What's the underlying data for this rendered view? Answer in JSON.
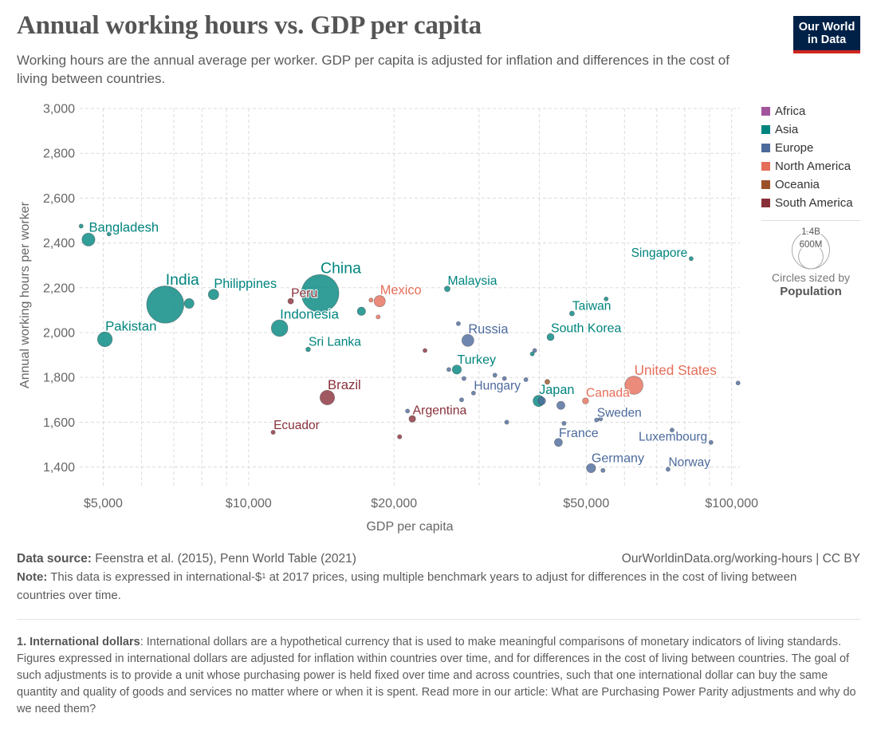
{
  "header": {
    "title": "Annual working hours vs. GDP per capita",
    "subtitle": "Working hours are the annual average per worker. GDP per capita is adjusted for inflation and differences in the cost of living between countries.",
    "logo": {
      "line1": "Our World",
      "line2": "in Data"
    }
  },
  "chart_data": {
    "type": "scatter",
    "title": "Annual working hours vs. GDP per capita",
    "xlabel": "GDP per capita",
    "ylabel": "Annual working hours per worker",
    "x_scale": "log",
    "xlim": [
      4470,
      104000
    ],
    "ylim": [
      1313,
      3000
    ],
    "x_ticks": [
      5000,
      10000,
      20000,
      50000,
      100000
    ],
    "x_tick_labels": [
      "$5,000",
      "$10,000",
      "$20,000",
      "$50,000",
      "$100,000"
    ],
    "x_minor_gridlines": [
      6000,
      7000,
      8000,
      9000,
      30000,
      40000,
      60000,
      70000,
      80000,
      90000
    ],
    "y_ticks": [
      1400,
      1600,
      1800,
      2000,
      2200,
      2400,
      2600,
      2800,
      3000
    ],
    "y_tick_labels": [
      "1,400",
      "1,600",
      "1,800",
      "2,000",
      "2,200",
      "2,400",
      "2,600",
      "2,800",
      "3,000"
    ],
    "grid": true,
    "legend_position": "right",
    "regions": [
      {
        "name": "Africa",
        "color": "#a2559c"
      },
      {
        "name": "Asia",
        "color": "#00847e"
      },
      {
        "name": "Europe",
        "color": "#4c6a9c"
      },
      {
        "name": "North America",
        "color": "#e56e5a"
      },
      {
        "name": "Oceania",
        "color": "#9a5129"
      },
      {
        "name": "South America",
        "color": "#883039"
      }
    ],
    "size_variable": "Population",
    "size_legend": [
      {
        "value_millions": 1400,
        "label": "1.4B"
      },
      {
        "value_millions": 600,
        "label": "600M"
      }
    ],
    "points": [
      {
        "label": "Bangladesh",
        "region": "Asia",
        "gdp_per_capita": 4660,
        "hours": 2415,
        "population_millions": 169
      },
      {
        "label": null,
        "region": "Asia",
        "gdp_per_capita": 4500,
        "hours": 2475,
        "population_millions": 16
      },
      {
        "label": null,
        "region": "Asia",
        "gdp_per_capita": 5140,
        "hours": 2440,
        "population_millions": 7
      },
      {
        "label": "India",
        "region": "Asia",
        "gdp_per_capita": 6720,
        "hours": 2125,
        "population_millions": 1380
      },
      {
        "label": null,
        "region": "Asia",
        "gdp_per_capita": 7530,
        "hours": 2130,
        "population_millions": 97
      },
      {
        "label": "Philippines",
        "region": "Asia",
        "gdp_per_capita": 8460,
        "hours": 2170,
        "population_millions": 110
      },
      {
        "label": "Pakistan",
        "region": "Asia",
        "gdp_per_capita": 5040,
        "hours": 1970,
        "population_millions": 220
      },
      {
        "label": "Indonesia",
        "region": "Asia",
        "gdp_per_capita": 11590,
        "hours": 2020,
        "population_millions": 274
      },
      {
        "label": "China",
        "region": "Asia",
        "gdp_per_capita": 14060,
        "hours": 2175,
        "population_millions": 1410
      },
      {
        "label": "Sri Lanka",
        "region": "Asia",
        "gdp_per_capita": 13280,
        "hours": 1925,
        "population_millions": 22
      },
      {
        "label": null,
        "region": "Asia",
        "gdp_per_capita": 17120,
        "hours": 2095,
        "population_millions": 70
      },
      {
        "label": "Malaysia",
        "region": "Asia",
        "gdp_per_capita": 25780,
        "hours": 2195,
        "population_millions": 32
      },
      {
        "label": "Turkey",
        "region": "Asia",
        "gdp_per_capita": 26980,
        "hours": 1835,
        "population_millions": 84
      },
      {
        "label": null,
        "region": "Asia",
        "gdp_per_capita": 38660,
        "hours": 1905,
        "population_millions": 9
      },
      {
        "label": "South Korea",
        "region": "Asia",
        "gdp_per_capita": 42170,
        "hours": 1980,
        "population_millions": 51
      },
      {
        "label": "Taiwan",
        "region": "Asia",
        "gdp_per_capita": 46710,
        "hours": 2085,
        "population_millions": 24
      },
      {
        "label": null,
        "region": "Asia",
        "gdp_per_capita": 54970,
        "hours": 2150,
        "population_millions": 7.5
      },
      {
        "label": "Singapore",
        "region": "Asia",
        "gdp_per_capita": 82440,
        "hours": 2330,
        "population_millions": 6
      },
      {
        "label": "Japan",
        "region": "Asia",
        "gdp_per_capita": 39850,
        "hours": 1695,
        "population_millions": 126
      },
      {
        "label": null,
        "region": "Europe",
        "gdp_per_capita": 27180,
        "hours": 2040,
        "population_millions": 7
      },
      {
        "label": "Russia",
        "region": "Europe",
        "gdp_per_capita": 28440,
        "hours": 1965,
        "population_millions": 144
      },
      {
        "label": null,
        "region": "Europe",
        "gdp_per_capita": 25970,
        "hours": 1835,
        "population_millions": 7
      },
      {
        "label": null,
        "region": "Europe",
        "gdp_per_capita": 27910,
        "hours": 1795,
        "population_millions": 10
      },
      {
        "label": null,
        "region": "Europe",
        "gdp_per_capita": 32350,
        "hours": 1810,
        "population_millions": 10
      },
      {
        "label": null,
        "region": "Europe",
        "gdp_per_capita": 33850,
        "hours": 1795,
        "population_millions": 5
      },
      {
        "label": null,
        "region": "Europe",
        "gdp_per_capita": 37500,
        "hours": 1790,
        "population_millions": 10
      },
      {
        "label": "Hungary",
        "region": "Europe",
        "gdp_per_capita": 29210,
        "hours": 1730,
        "population_millions": 10
      },
      {
        "label": null,
        "region": "Europe",
        "gdp_per_capita": 27600,
        "hours": 1700,
        "population_millions": 6
      },
      {
        "label": null,
        "region": "Europe",
        "gdp_per_capita": 21330,
        "hours": 1650,
        "population_millions": 7
      },
      {
        "label": null,
        "region": "Europe",
        "gdp_per_capita": 34230,
        "hours": 1600,
        "population_millions": 10
      },
      {
        "label": null,
        "region": "Europe",
        "gdp_per_capita": 40460,
        "hours": 1695,
        "population_millions": 60
      },
      {
        "label": null,
        "region": "Europe",
        "gdp_per_capita": 44300,
        "hours": 1675,
        "population_millions": 67
      },
      {
        "label": null,
        "region": "Europe",
        "gdp_per_capita": 39100,
        "hours": 1920,
        "population_millions": 10
      },
      {
        "label": "Sweden",
        "region": "Europe",
        "gdp_per_capita": 52520,
        "hours": 1610,
        "population_millions": 10
      },
      {
        "label": null,
        "region": "Europe",
        "gdp_per_capita": 53530,
        "hours": 1615,
        "population_millions": 6
      },
      {
        "label": null,
        "region": "Europe",
        "gdp_per_capita": 44970,
        "hours": 1595,
        "population_millions": 17
      },
      {
        "label": "France",
        "region": "Europe",
        "gdp_per_capita": 43790,
        "hours": 1510,
        "population_millions": 65
      },
      {
        "label": null,
        "region": "Europe",
        "gdp_per_capita": 75270,
        "hours": 1565,
        "population_millions": 5
      },
      {
        "label": "Luxembourg",
        "region": "Europe",
        "gdp_per_capita": 90630,
        "hours": 1510,
        "population_millions": 0.6
      },
      {
        "label": "Germany",
        "region": "Europe",
        "gdp_per_capita": 51160,
        "hours": 1395,
        "population_millions": 83
      },
      {
        "label": null,
        "region": "Europe",
        "gdp_per_capita": 54150,
        "hours": 1385,
        "population_millions": 6
      },
      {
        "label": "Norway",
        "region": "Europe",
        "gdp_per_capita": 73860,
        "hours": 1390,
        "population_millions": 5.4
      },
      {
        "label": null,
        "region": "Europe",
        "gdp_per_capita": 103100,
        "hours": 1775,
        "population_millions": 5
      },
      {
        "label": "Mexico",
        "region": "North America",
        "gdp_per_capita": 18680,
        "hours": 2140,
        "population_millions": 128
      },
      {
        "label": null,
        "region": "North America",
        "gdp_per_capita": 17920,
        "hours": 2145,
        "population_millions": 5
      },
      {
        "label": null,
        "region": "North America",
        "gdp_per_capita": 18540,
        "hours": 2070,
        "population_millions": 4
      },
      {
        "label": "United States",
        "region": "North America",
        "gdp_per_capita": 62770,
        "hours": 1765,
        "population_millions": 330
      },
      {
        "label": "Canada",
        "region": "North America",
        "gdp_per_capita": 49830,
        "hours": 1695,
        "population_millions": 38
      },
      {
        "label": "Peru",
        "region": "South America",
        "gdp_per_capita": 12220,
        "hours": 2140,
        "population_millions": 33
      },
      {
        "label": null,
        "region": "South America",
        "gdp_per_capita": 23180,
        "hours": 1920,
        "population_millions": 3.5
      },
      {
        "label": "Brazil",
        "region": "South America",
        "gdp_per_capita": 14550,
        "hours": 1710,
        "population_millions": 213
      },
      {
        "label": "Argentina",
        "region": "South America",
        "gdp_per_capita": 21820,
        "hours": 1615,
        "population_millions": 45
      },
      {
        "label": null,
        "region": "South America",
        "gdp_per_capita": 20540,
        "hours": 1535,
        "population_millions": 19
      },
      {
        "label": "Ecuador",
        "region": "South America",
        "gdp_per_capita": 11240,
        "hours": 1555,
        "population_millions": 18
      },
      {
        "label": null,
        "region": "Oceania",
        "gdp_per_capita": 41530,
        "hours": 1780,
        "population_millions": 25
      }
    ]
  },
  "legend": {
    "size_caption": "Circles sized by",
    "size_variable": "Population"
  },
  "footer": {
    "source_label": "Data source:",
    "source_text": "Feenstra et al. (2015), Penn World Table (2021)",
    "url": "OurWorldinData.org/working-hours",
    "separator": " | ",
    "license": "CC BY",
    "note_label": "Note:",
    "note_before": "This data is expressed in international-$",
    "note_sup": "1",
    "note_after": " at 2017 prices, using multiple benchmark years to adjust for differences in the cost of living between countries over time.",
    "footnote_label": "1. International dollars",
    "footnote_text": ": International dollars are a hypothetical currency that is used to make meaningful comparisons of monetary indicators of living standards. Figures expressed in international dollars are adjusted for inflation within countries over time, and for differences in the cost of living between countries. The goal of such adjustments is to provide a unit whose purchasing power is held fixed over time and across countries, such that one international dollar can buy the same quantity and quality of goods and services no matter where or when it is spent. Read more in our article: ",
    "footnote_link": "What are Purchasing Power Parity adjustments and why do we need them?"
  }
}
